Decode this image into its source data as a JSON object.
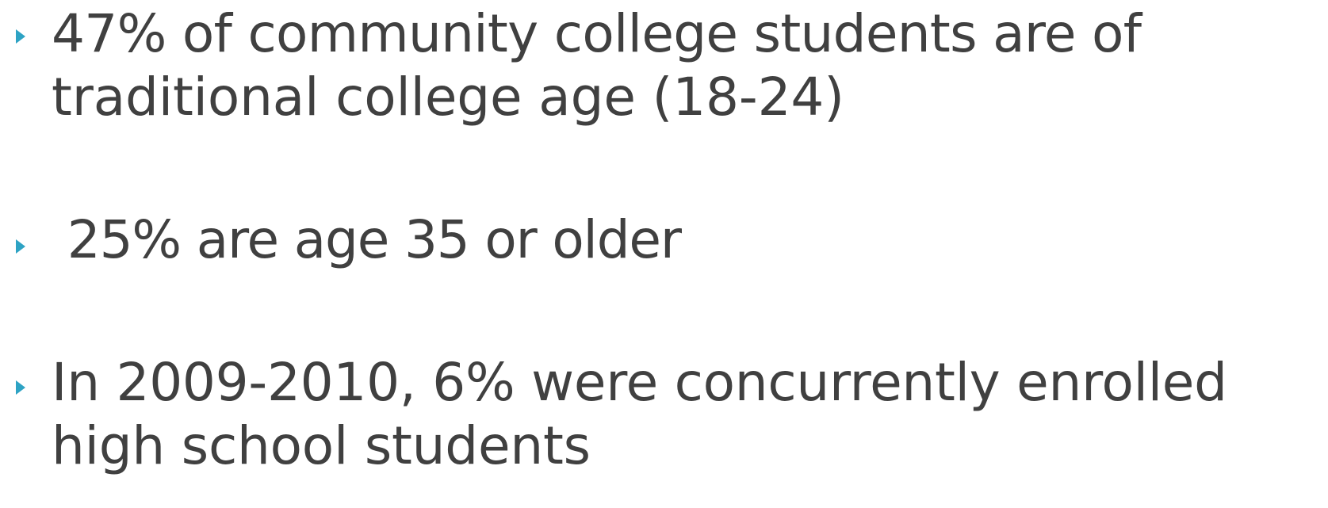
{
  "bullets": [
    {
      "lines": [
        "47% of community college students are of",
        "traditional college age (18-24)"
      ]
    },
    {
      "lines": [
        " 25% are age 35 or older"
      ]
    },
    {
      "lines": [
        "In 2009-2010, 6% were concurrently enrolled",
        "high school students"
      ]
    }
  ]
}
